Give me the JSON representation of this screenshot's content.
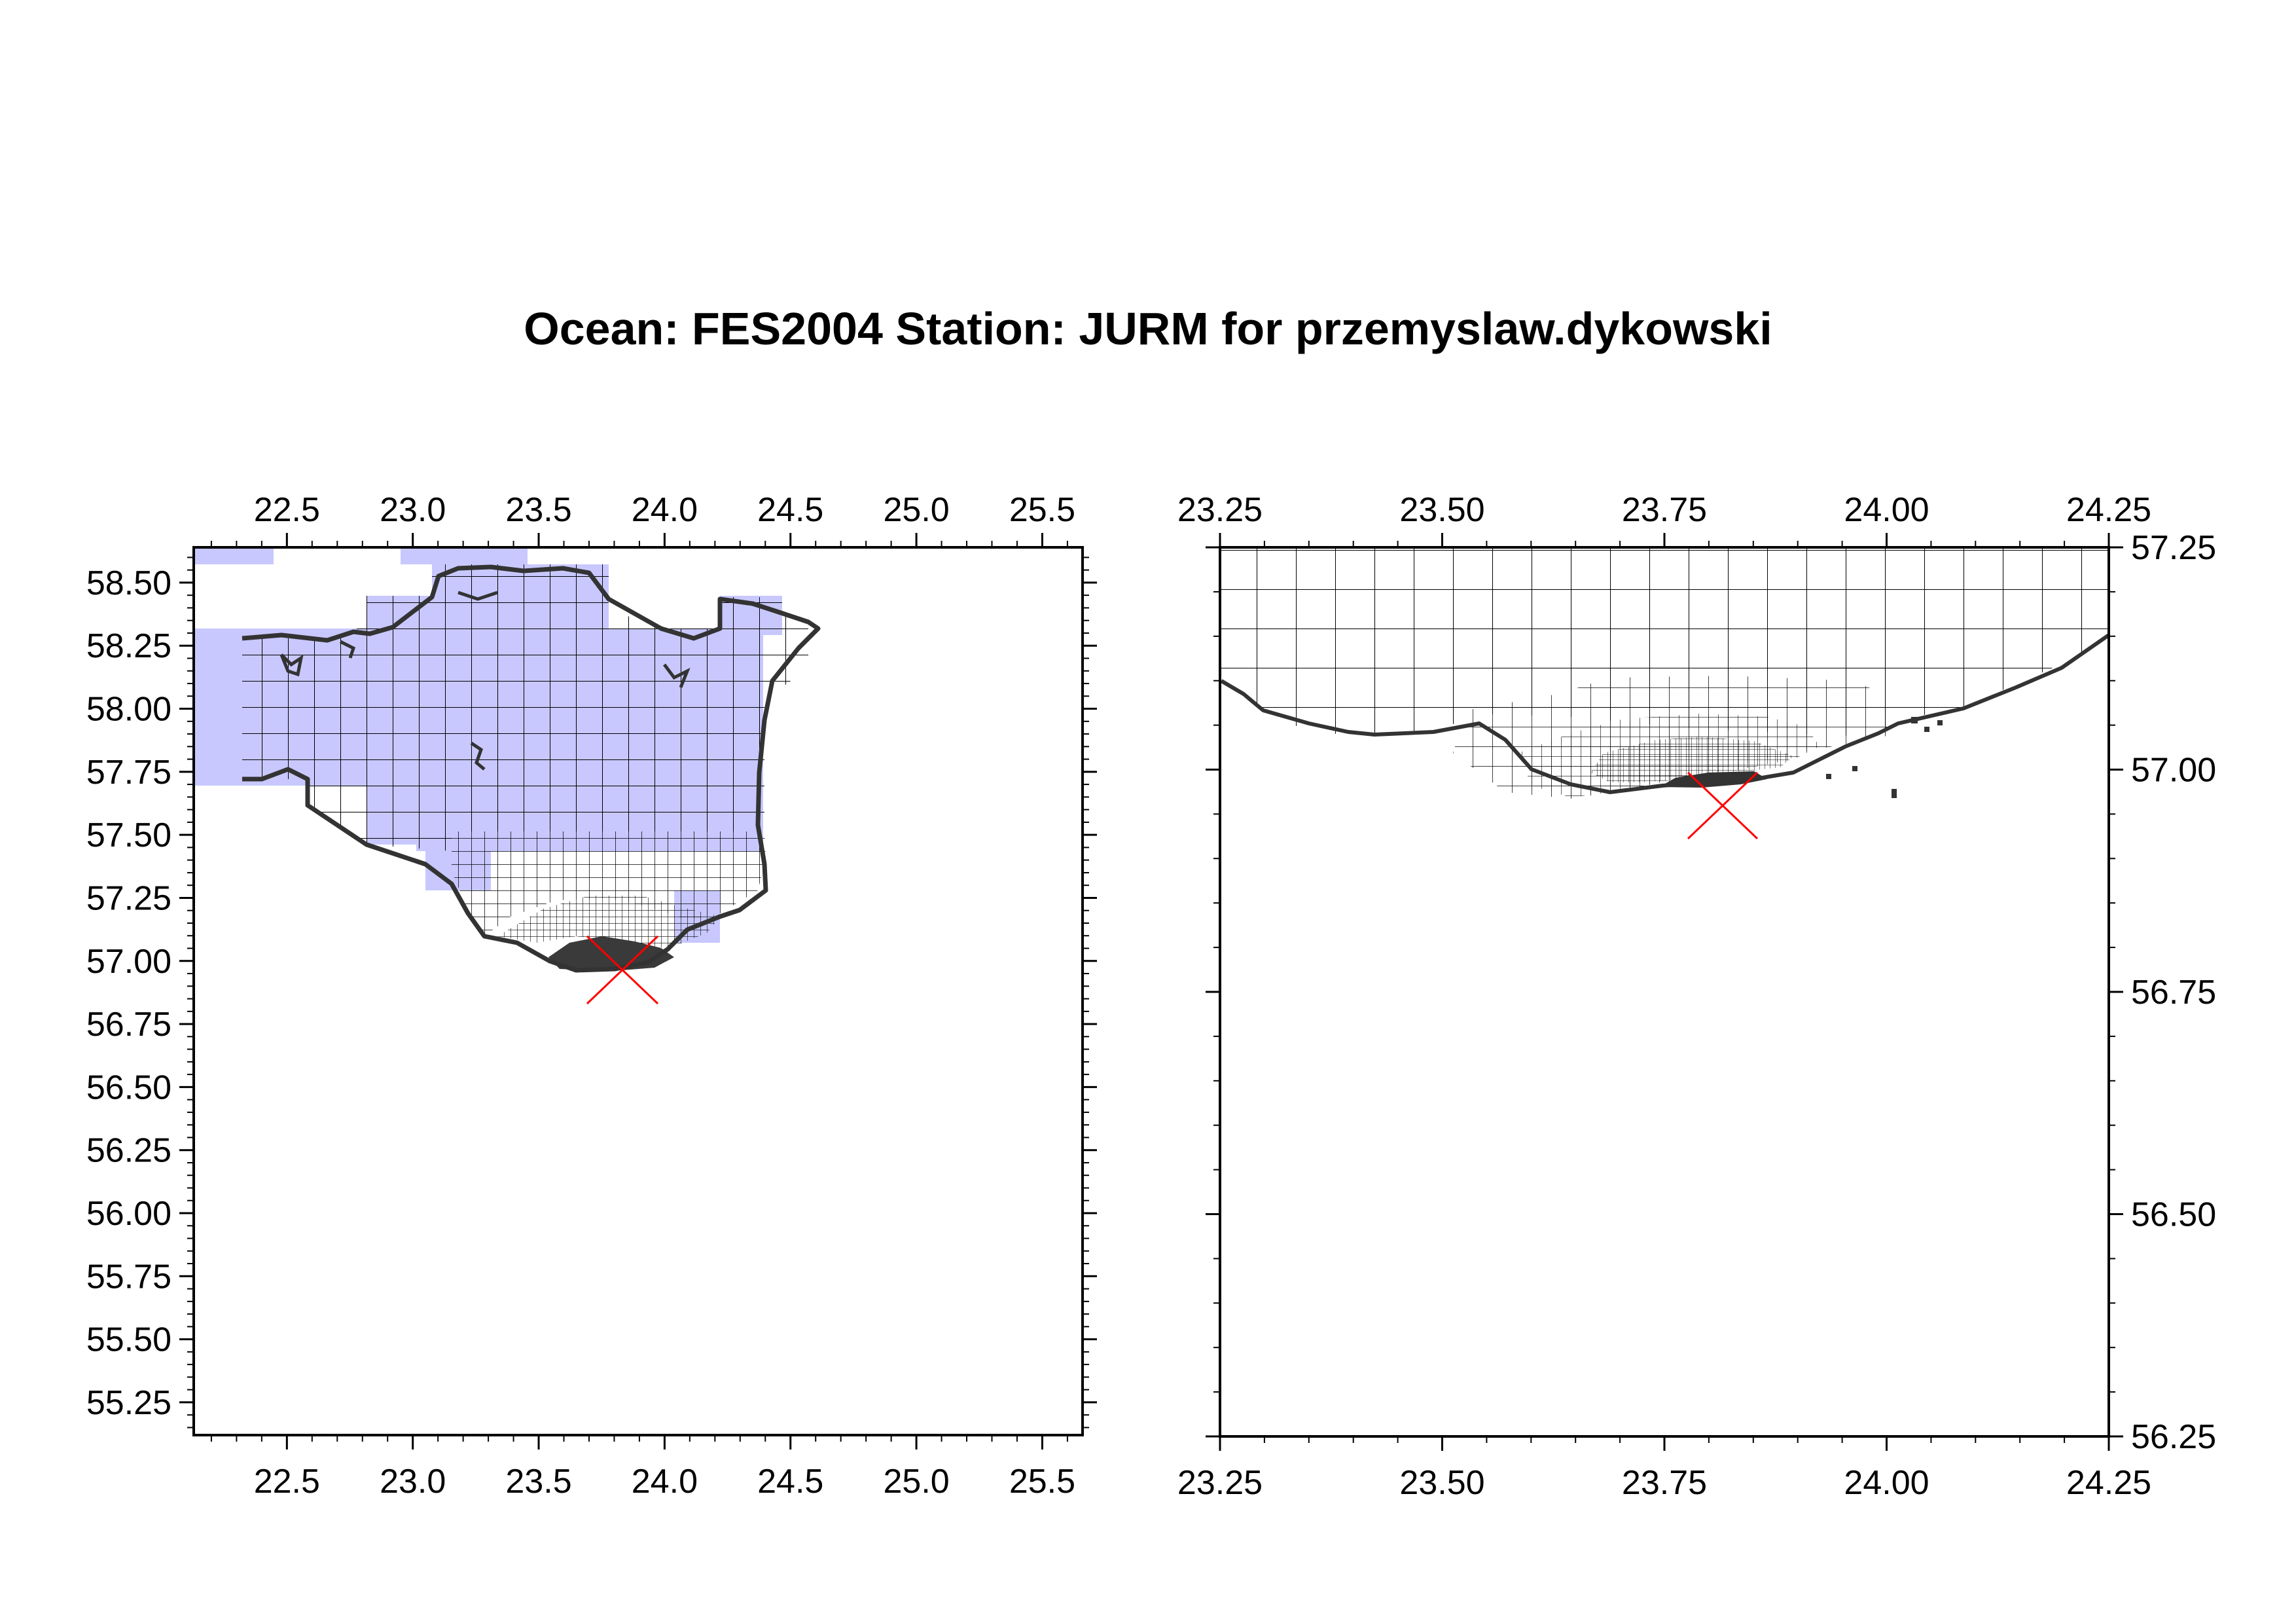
{
  "title": "Ocean: FES2004  Station: JURM  for przemyslaw.dykowski",
  "colors": {
    "grid_cell_fill": "#c8c8ff",
    "grid_line": "#000000",
    "coast_dark": "#333333",
    "station_marker": "#ff0000",
    "background": "#ffffff"
  },
  "station_marker_icon": "red-x-cross-icon",
  "maps": [
    {
      "id": "overview",
      "lon_range": [
        22.13,
        25.66
      ],
      "lat_range": [
        55.12,
        58.64
      ],
      "x_ticks": [
        "22.5",
        "23.0",
        "23.5",
        "24.0",
        "24.5",
        "25.0",
        "25.5"
      ],
      "y_ticks": [
        "58.50",
        "58.25",
        "58.00",
        "57.75",
        "57.50",
        "57.25",
        "57.00",
        "56.75",
        "56.50",
        "56.25",
        "56.00",
        "55.75",
        "55.50",
        "55.25"
      ],
      "y_labels_side": "left",
      "station": {
        "lon": 23.82,
        "lat": 56.97
      }
    },
    {
      "id": "zoom",
      "lon_range": [
        23.25,
        24.25
      ],
      "lat_range": [
        56.25,
        57.25
      ],
      "x_ticks": [
        "23.25",
        "23.50",
        "23.75",
        "24.00",
        "24.25"
      ],
      "y_ticks": [
        "57.25",
        "57.00",
        "56.75",
        "56.50",
        "56.25"
      ],
      "y_labels_side": "right",
      "station": {
        "lon": 23.81,
        "lat": 56.97
      }
    }
  ]
}
